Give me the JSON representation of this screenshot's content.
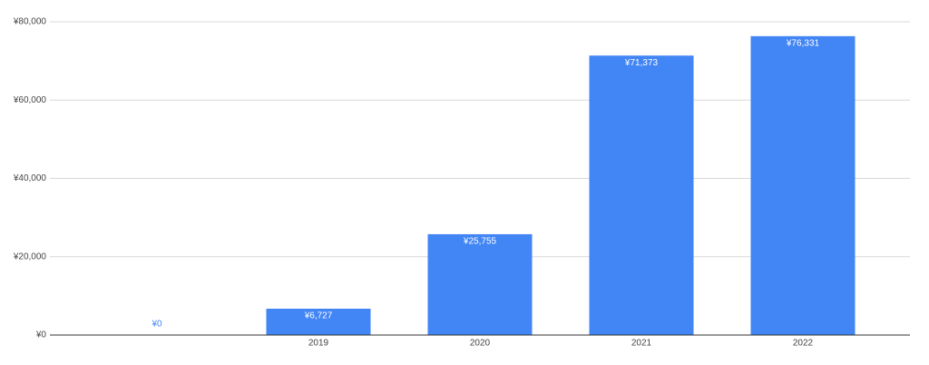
{
  "chart_data": {
    "type": "bar",
    "categories": [
      null,
      "2019",
      "2020",
      "2021",
      "2022"
    ],
    "values": [
      0,
      6727,
      25755,
      71373,
      76331
    ],
    "value_labels": [
      "¥0",
      "¥6,727",
      "¥25,755",
      "¥71,373",
      "¥76,331"
    ],
    "color": "#4285f4",
    "ylim": [
      0,
      80000
    ],
    "yticks": [
      {
        "value": 0,
        "label": "¥0"
      },
      {
        "value": 20000,
        "label": "¥20,000"
      },
      {
        "value": 40000,
        "label": "¥40,000"
      },
      {
        "value": 60000,
        "label": "¥60,000"
      },
      {
        "value": 80000,
        "label": "¥80,000"
      }
    ],
    "grid": true
  }
}
